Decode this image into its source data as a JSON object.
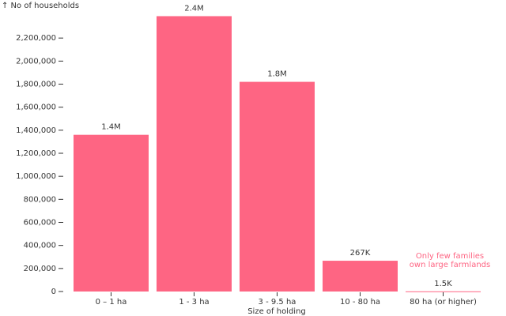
{
  "chart_data": {
    "type": "bar",
    "y_label": "↑ No of households",
    "x_label": "Size of holding",
    "categories": [
      "0 – 1 ha",
      "1 - 3 ha",
      "3 - 9.5 ha",
      "10 - 80 ha",
      "80  ha (or higher)"
    ],
    "values": [
      1360000,
      2390000,
      1820000,
      267000,
      1500
    ],
    "value_labels": [
      "1.4M",
      "2.4M",
      "1.8M",
      "267K",
      "1.5K"
    ],
    "color": "#fe6583",
    "annotation": [
      "Only few families",
      "own large farmlands"
    ],
    "ylim": [
      0,
      2400000
    ],
    "yticks": [
      0,
      {
        "value": 200000,
        "label": "200,000"
      },
      {
        "value": 400000,
        "label": "400,000"
      },
      {
        "value": 600000,
        "label": "600,000"
      },
      {
        "value": 800000,
        "label": "800,000"
      },
      {
        "value": 1000000,
        "label": "1,000,000"
      },
      {
        "value": 1200000,
        "label": "1,200,000"
      },
      {
        "value": 1400000,
        "label": "1,400,000"
      },
      {
        "value": 1600000,
        "label": "1,600,000"
      },
      {
        "value": 1800000,
        "label": "1,800,000"
      },
      {
        "value": 2000000,
        "label": "2,000,000"
      },
      {
        "value": 2200000,
        "label": "2,200,000"
      }
    ]
  }
}
